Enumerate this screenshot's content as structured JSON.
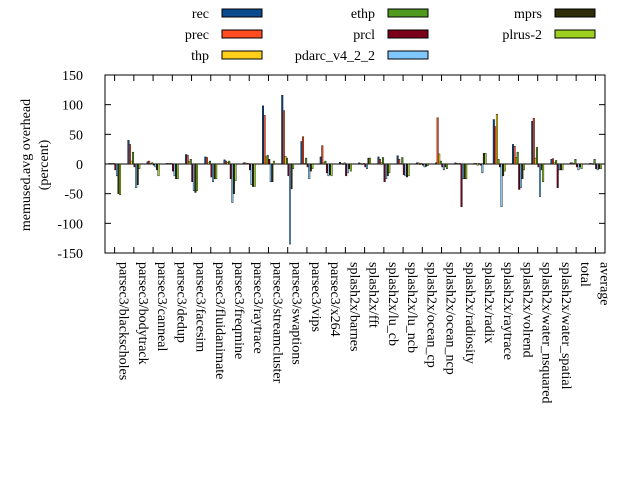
{
  "chart_data": {
    "type": "bar",
    "title": "",
    "xlabel": "",
    "ylabel_lines": [
      "memused.avg overhead",
      "(percent)"
    ],
    "ylim": [
      -150,
      150
    ],
    "yticks": [
      -150,
      -100,
      -50,
      0,
      50,
      100,
      150
    ],
    "grid": false,
    "legend_position": "top",
    "categories": [
      "parsec3/blackscholes",
      "parsec3/bodytrack",
      "parsec3/canneal",
      "parsec3/dedup",
      "parsec3/facesim",
      "parsec3/fluidanimate",
      "parsec3/freqmine",
      "parsec3/raytrace",
      "parsec3/streamcluster",
      "parsec3/swaptions",
      "parsec3/vips",
      "parsec3/x264",
      "splash2x/barnes",
      "splash2x/fft",
      "splash2x/lu_cb",
      "splash2x/lu_ncb",
      "splash2x/ocean_cp",
      "splash2x/ocean_ncp",
      "splash2x/radiosity",
      "splash2x/radix",
      "splash2x/raytrace",
      "splash2x/volrend",
      "splash2x/water_nsquared",
      "splash2x/water_spatial",
      "total",
      "average"
    ],
    "series": [
      {
        "name": "rec",
        "color": "#0b4a8c",
        "values": [
          1,
          40,
          4,
          1,
          16,
          12,
          7,
          2,
          98,
          116,
          38,
          12,
          3,
          2,
          12,
          14,
          2,
          2,
          2,
          1,
          75,
          33,
          72,
          8,
          2,
          1
        ]
      },
      {
        "name": "prec",
        "color": "#ff4b1f",
        "values": [
          1,
          33,
          5,
          1,
          15,
          11,
          5,
          2,
          82,
          90,
          46,
          31,
          1,
          1,
          8,
          8,
          2,
          78,
          1,
          1,
          63,
          30,
          77,
          9,
          2,
          1
        ]
      },
      {
        "name": "thp",
        "color": "#ffcf1a",
        "values": [
          1,
          5,
          1,
          1,
          4,
          2,
          3,
          1,
          12,
          13,
          1,
          2,
          0,
          0,
          3,
          1,
          -1,
          17,
          1,
          -2,
          84,
          11,
          10,
          2,
          1,
          0
        ]
      },
      {
        "name": "ethp",
        "color": "#4f9a1f",
        "values": [
          1,
          20,
          2,
          1,
          8,
          5,
          5,
          1,
          15,
          10,
          10,
          5,
          2,
          1,
          11,
          11,
          1,
          5,
          1,
          1,
          8,
          20,
          28,
          6,
          8,
          8
        ]
      },
      {
        "name": "prcl",
        "color": "#7a0019",
        "values": [
          -10,
          -5,
          -2,
          -12,
          -30,
          -22,
          -25,
          -10,
          8,
          -20,
          -5,
          -15,
          -20,
          -5,
          -30,
          -18,
          -2,
          -5,
          -72,
          -2,
          -5,
          -43,
          -5,
          -40,
          -5,
          -8
        ]
      },
      {
        "name": "pdarc_v4_2_2",
        "color": "#7ec8ff",
        "values": [
          -20,
          -40,
          -5,
          -20,
          -45,
          -30,
          -65,
          -35,
          -30,
          -135,
          -25,
          -20,
          -15,
          -8,
          -25,
          -20,
          -5,
          -10,
          -25,
          -15,
          -72,
          -40,
          -55,
          -10,
          -10,
          -10
        ]
      },
      {
        "name": "mprs",
        "color": "#2d2d0a",
        "values": [
          -50,
          -35,
          -10,
          -25,
          -48,
          -25,
          -50,
          -38,
          -30,
          -42,
          -12,
          -18,
          -8,
          10,
          -20,
          -22,
          -4,
          -5,
          -25,
          18,
          -20,
          -25,
          -10,
          -10,
          -5,
          -8
        ]
      },
      {
        "name": "plrus-2",
        "color": "#9ccf1f",
        "values": [
          -52,
          -8,
          -20,
          -25,
          -45,
          -25,
          -28,
          -38,
          5,
          -8,
          -8,
          -20,
          -12,
          10,
          -15,
          -20,
          -3,
          -8,
          -25,
          18,
          -12,
          -10,
          -30,
          -10,
          -8,
          -8
        ]
      }
    ]
  }
}
